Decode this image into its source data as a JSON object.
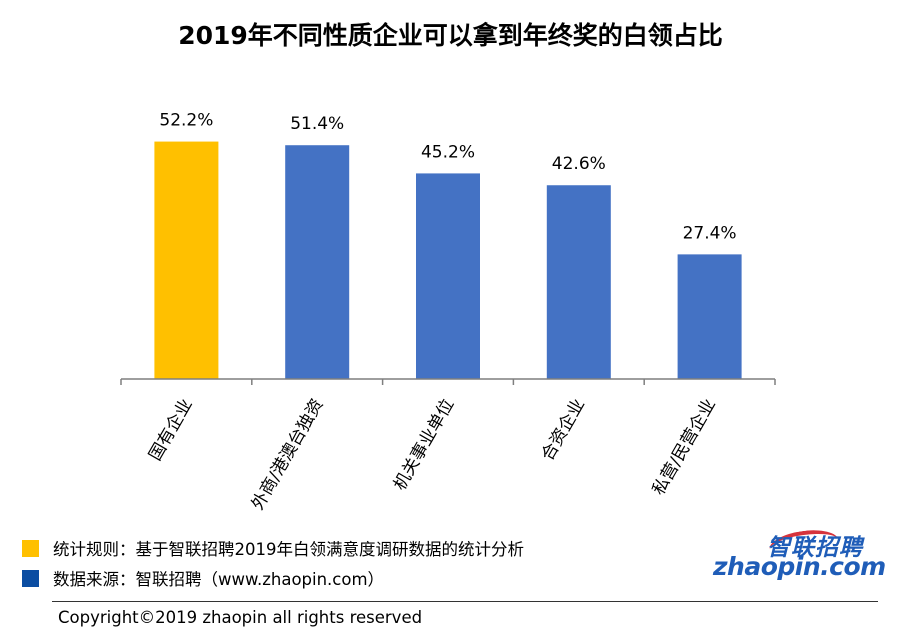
{
  "title": "2019年不同性质企业可以拿到年终奖的白领占比",
  "chart_data": {
    "type": "bar",
    "categories": [
      "国有企业",
      "外商/港澳台独资",
      "机关事业单位",
      "合资企业",
      "私营/民营企业"
    ],
    "values": [
      52.2,
      51.4,
      45.2,
      42.6,
      27.4
    ],
    "value_labels": [
      "52.2%",
      "51.4%",
      "45.2%",
      "42.6%",
      "27.4%"
    ],
    "colors": [
      "#FFC000",
      "#4472C4",
      "#4472C4",
      "#4472C4",
      "#4472C4"
    ],
    "ylim": [
      0,
      62
    ],
    "grid": false,
    "title": "2019年不同性质企业可以拿到年终奖的白领占比",
    "xlabel": "",
    "ylabel": ""
  },
  "legend": [
    {
      "color": "#FFC000",
      "text": "统计规则：基于智联招聘2019年白领满意度调研数据的统计分析"
    },
    {
      "color": "#0B4DA2",
      "text": "数据来源：智联招聘（www.zhaopin.com）"
    }
  ],
  "logo": {
    "cn": "智联招聘",
    "en": "zhaopin.com"
  },
  "copyright": "Copyright©2019 zhaopin all rights reserved"
}
